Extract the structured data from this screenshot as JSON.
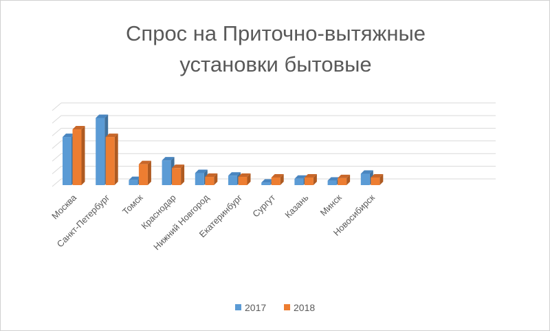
{
  "chart_data": {
    "type": "bar",
    "style": "3d-clustered-column",
    "title": [
      "Спрос на Приточно-вытяжные",
      "установки бытовые"
    ],
    "xlabel": "",
    "ylabel": "",
    "ylim": [
      0,
      6
    ],
    "grid": true,
    "legend_position": "bottom",
    "categories": [
      "Москва",
      "Санкт-Петербург",
      "Томск",
      "Краснодар",
      "Нижний Новгород",
      "Екатеринбург",
      "Сургут",
      "Казань",
      "Минск",
      "Новосибирск"
    ],
    "series": [
      {
        "name": "2017",
        "color": "#5B9BD5",
        "values": [
          3.8,
          5.3,
          0.4,
          1.95,
          0.95,
          0.75,
          0.2,
          0.5,
          0.35,
          0.9
        ]
      },
      {
        "name": "2018",
        "color": "#ED7D31",
        "values": [
          4.4,
          3.8,
          1.65,
          1.35,
          0.65,
          0.65,
          0.6,
          0.6,
          0.55,
          0.6
        ]
      }
    ]
  }
}
